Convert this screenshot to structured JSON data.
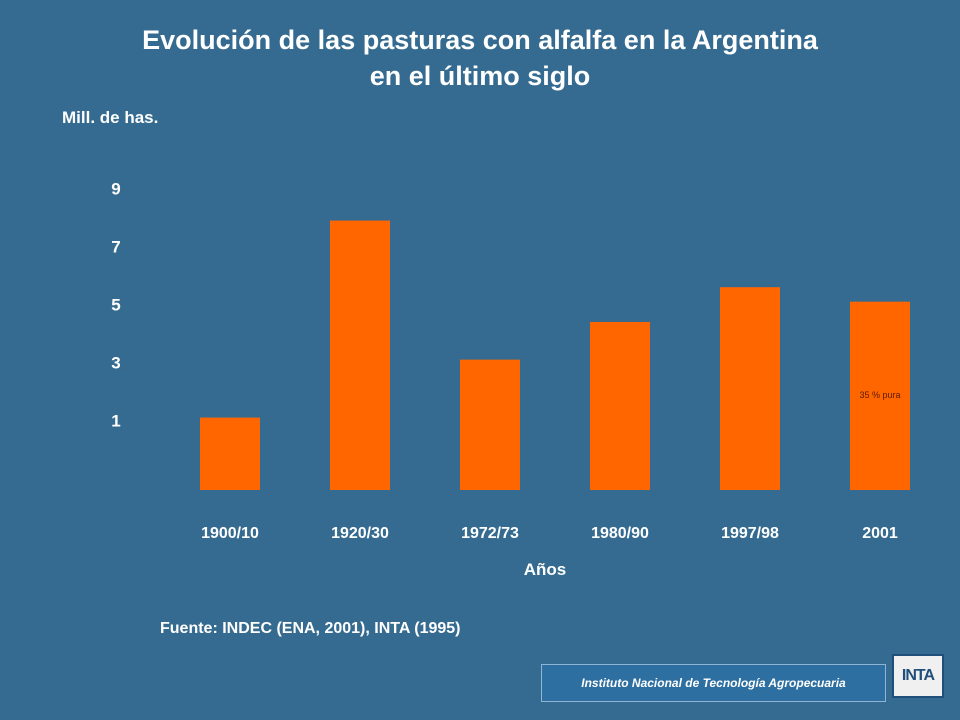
{
  "title_line1": "Evolución de las pasturas con alfalfa en la Argentina",
  "title_line2": "en el último siglo",
  "source": "Fuente: INDEC (ENA, 2001), INTA (1995)",
  "footer": "Instituto Nacional de Tecnología Agropecuaria",
  "logo_text": "INTA",
  "colors": {
    "background": "#356b90",
    "bar": "#ff6600",
    "text": "#ffffff"
  },
  "chart_data": {
    "type": "bar",
    "title": "Evolución de las pasturas con alfalfa en la Argentina en el último siglo",
    "xlabel": "Años",
    "ylabel": "Mill. de has.",
    "yticks": [
      1,
      3,
      5,
      7,
      9
    ],
    "ylim": [
      -1.4,
      9.3
    ],
    "categories": [
      "1900/10",
      "1920/30",
      "1972/73",
      "1980/90",
      "1997/98",
      "2001"
    ],
    "values": [
      1.1,
      7.9,
      3.1,
      4.4,
      5.6,
      5.1
    ],
    "annotations": [
      {
        "category": "2001",
        "text": "35 % pura"
      }
    ],
    "grid": false,
    "legend": "none"
  }
}
